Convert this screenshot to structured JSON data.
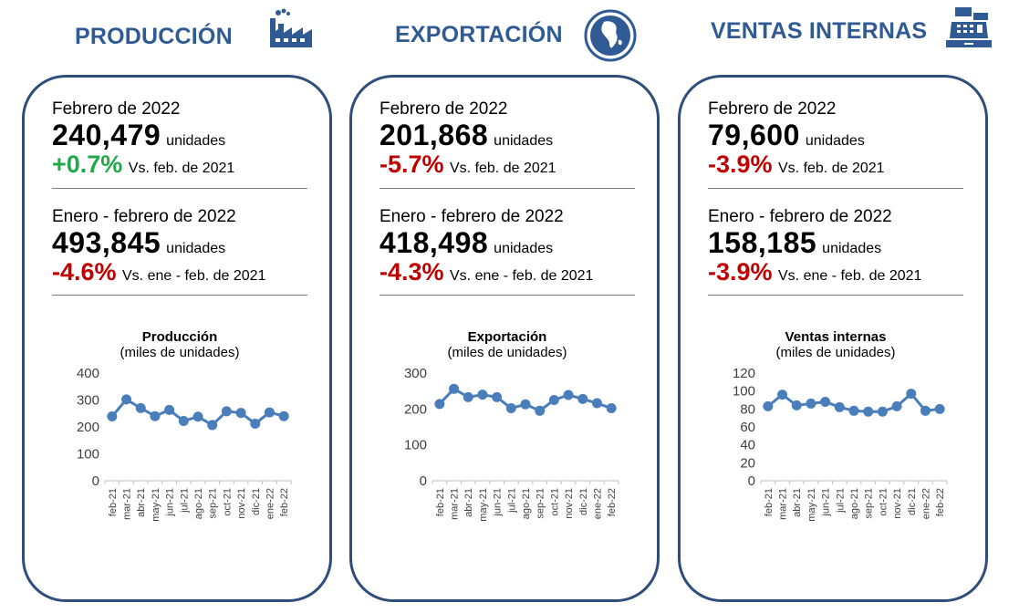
{
  "months": [
    "feb-21",
    "mar-21",
    "abr-21",
    "may-21",
    "jun-21",
    "jul-21",
    "ago-21",
    "sep-21",
    "oct-21",
    "nov-21",
    "dic-21",
    "ene-22",
    "feb-22"
  ],
  "colors": {
    "title": "#2f5a93",
    "border": "#2f4d7a",
    "positive": "#22a84a",
    "negative": "#c00000",
    "line": "#4a7ebb"
  },
  "panels": [
    {
      "title": "PRODUCCIÓN",
      "icon": "factory-icon",
      "monthly": {
        "period": "Febrero de 2022",
        "value": "240,479",
        "unit": "unidades",
        "change": "+0.7%",
        "change_sign": "pos",
        "comparison": "Vs. feb. de 2021"
      },
      "ytd": {
        "period": "Enero - febrero de 2022",
        "value": "493,845",
        "unit": "unidades",
        "change": "-4.6%",
        "change_sign": "neg",
        "comparison": "Vs. ene - feb. de 2021"
      },
      "chart_title": "Producción",
      "chart_subtitle": "(miles de unidades)"
    },
    {
      "title": "EXPORTACIÓN",
      "icon": "globe-icon",
      "monthly": {
        "period": "Febrero de 2022",
        "value": "201,868",
        "unit": "unidades",
        "change": "-5.7%",
        "change_sign": "neg",
        "comparison": "Vs. feb. de 2021"
      },
      "ytd": {
        "period": "Enero - febrero de 2022",
        "value": "418,498",
        "unit": "unidades",
        "change": "-4.3%",
        "change_sign": "neg",
        "comparison": "Vs. ene - feb. de 2021"
      },
      "chart_title": "Exportación",
      "chart_subtitle": "(miles de unidades)"
    },
    {
      "title": "VENTAS INTERNAS",
      "icon": "cash-register-icon",
      "monthly": {
        "period": "Febrero de 2022",
        "value": "79,600",
        "unit": "unidades",
        "change": "-3.9%",
        "change_sign": "neg",
        "comparison": "Vs. feb. de 2021"
      },
      "ytd": {
        "period": "Enero - febrero de 2022",
        "value": "158,185",
        "unit": "unidades",
        "change": "-3.9%",
        "change_sign": "neg",
        "comparison": "Vs. ene - feb. de 2021"
      },
      "chart_title": "Ventas internas",
      "chart_subtitle": "(miles de unidades)"
    }
  ],
  "chart_data": [
    {
      "type": "line",
      "title": "Producción",
      "subtitle": "(miles de unidades)",
      "categories": [
        "feb-21",
        "mar-21",
        "abr-21",
        "may-21",
        "jun-21",
        "jul-21",
        "ago-21",
        "sep-21",
        "oct-21",
        "nov-21",
        "dic-21",
        "ene-22",
        "feb-22"
      ],
      "series": [
        {
          "values": [
            239,
            302,
            270,
            240,
            263,
            222,
            238,
            207,
            258,
            252,
            212,
            254,
            240
          ]
        }
      ],
      "ylim": [
        0,
        400
      ],
      "yticks": [
        0,
        100,
        200,
        300,
        400
      ],
      "grid": false
    },
    {
      "type": "line",
      "title": "Exportación",
      "subtitle": "(miles de unidades)",
      "categories": [
        "feb-21",
        "mar-21",
        "abr-21",
        "may-21",
        "jun-21",
        "jul-21",
        "ago-21",
        "sep-21",
        "oct-21",
        "nov-21",
        "dic-21",
        "ene-22",
        "feb-22"
      ],
      "series": [
        {
          "values": [
            214,
            256,
            233,
            240,
            233,
            202,
            213,
            195,
            225,
            239,
            228,
            216,
            202
          ]
        }
      ],
      "ylim": [
        0,
        300
      ],
      "yticks": [
        0,
        100,
        200,
        300
      ],
      "grid": false
    },
    {
      "type": "line",
      "title": "Ventas internas",
      "subtitle": "(miles de unidades)",
      "categories": [
        "feb-21",
        "mar-21",
        "abr-21",
        "may-21",
        "jun-21",
        "jul-21",
        "ago-21",
        "sep-21",
        "oct-21",
        "nov-21",
        "dic-21",
        "ene-22",
        "feb-22"
      ],
      "series": [
        {
          "values": [
            83,
            96,
            84,
            86,
            88,
            82,
            78,
            77,
            77,
            83,
            97,
            78,
            80
          ]
        }
      ],
      "ylim": [
        0,
        120
      ],
      "yticks": [
        0,
        20,
        40,
        60,
        80,
        100,
        120
      ],
      "grid": false
    }
  ]
}
